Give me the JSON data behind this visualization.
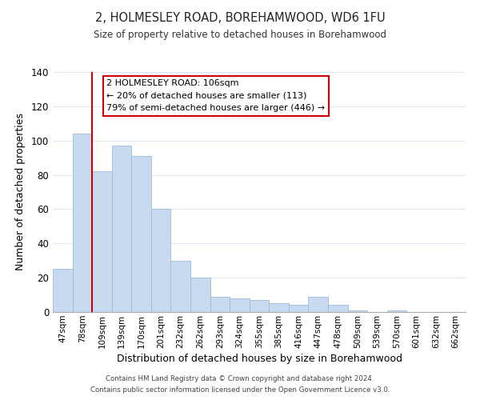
{
  "title": "2, HOLMESLEY ROAD, BOREHAMWOOD, WD6 1FU",
  "subtitle": "Size of property relative to detached houses in Borehamwood",
  "xlabel": "Distribution of detached houses by size in Borehamwood",
  "ylabel": "Number of detached properties",
  "bar_labels": [
    "47sqm",
    "78sqm",
    "109sqm",
    "139sqm",
    "170sqm",
    "201sqm",
    "232sqm",
    "262sqm",
    "293sqm",
    "324sqm",
    "355sqm",
    "385sqm",
    "416sqm",
    "447sqm",
    "478sqm",
    "509sqm",
    "539sqm",
    "570sqm",
    "601sqm",
    "632sqm",
    "662sqm"
  ],
  "bar_values": [
    25,
    104,
    82,
    97,
    91,
    60,
    30,
    20,
    9,
    8,
    7,
    5,
    4,
    9,
    4,
    1,
    0,
    1,
    0,
    0,
    0
  ],
  "bar_color": "#c8daf0",
  "bar_edge_color": "#a0bcd8",
  "vline_x": 1.5,
  "vline_color": "#cc0000",
  "ylim": [
    0,
    140
  ],
  "yticks": [
    0,
    20,
    40,
    60,
    80,
    100,
    120,
    140
  ],
  "annotation_title": "2 HOLMESLEY ROAD: 106sqm",
  "annotation_line1": "← 20% of detached houses are smaller (113)",
  "annotation_line2": "79% of semi-detached houses are larger (446) →",
  "annotation_box_color": "#ffffff",
  "annotation_box_edge": "#cc0000",
  "footer_line1": "Contains HM Land Registry data © Crown copyright and database right 2024.",
  "footer_line2": "Contains public sector information licensed under the Open Government Licence v3.0.",
  "background_color": "#ffffff",
  "grid_color": "#dde8f4"
}
